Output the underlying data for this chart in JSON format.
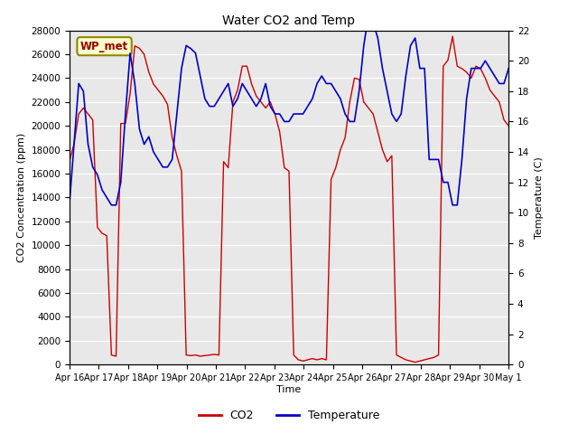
{
  "title": "Water CO2 and Temp",
  "xlabel": "Time",
  "ylabel_left": "CO2 Concentration (ppm)",
  "ylabel_right": "Temperature (C)",
  "co2_ylim": [
    0,
    28000
  ],
  "temp_ylim": [
    0,
    22
  ],
  "co2_yticks": [
    0,
    2000,
    4000,
    6000,
    8000,
    10000,
    12000,
    14000,
    16000,
    18000,
    20000,
    22000,
    24000,
    26000,
    28000
  ],
  "temp_yticks": [
    0,
    2,
    4,
    6,
    8,
    10,
    12,
    14,
    16,
    18,
    20,
    22
  ],
  "co2_color": "#cc0000",
  "temp_color": "#0000cc",
  "legend_label": "WP_met",
  "bg_color": "#e8e8e8",
  "fig_bg": "#ffffff",
  "xtick_labels": [
    "Apr 16",
    "Apr 17",
    "Apr 18",
    "Apr 19",
    "Apr 20",
    "Apr 21",
    "Apr 22",
    "Apr 23",
    "Apr 24",
    "Apr 25",
    "Apr 26",
    "Apr 27",
    "Apr 28",
    "Apr 29",
    "Apr 30",
    "May 1"
  ],
  "co2_data": [
    17000,
    18500,
    21000,
    21500,
    21000,
    20500,
    11500,
    11000,
    10800,
    800,
    700,
    20200,
    20200,
    22700,
    26700,
    26500,
    26000,
    24500,
    23500,
    23000,
    22500,
    21800,
    19000,
    17500,
    16200,
    800,
    750,
    800,
    700,
    750,
    800,
    850,
    800,
    17000,
    16500,
    22000,
    23000,
    25000,
    25000,
    23500,
    22500,
    22000,
    21500,
    22000,
    21000,
    19500,
    16500,
    16200,
    800,
    400,
    300,
    400,
    500,
    400,
    500,
    400,
    15500,
    16500,
    18000,
    19000,
    22000,
    24000,
    23900,
    22000,
    21500,
    21000,
    19500,
    18000,
    17000,
    17500,
    800,
    600,
    400,
    300,
    200,
    300,
    400,
    500,
    600,
    800,
    25000,
    25500,
    27500,
    25000,
    24800,
    24500,
    24000,
    25000,
    24800,
    24000,
    23000,
    22500,
    22000,
    20500,
    20000
  ],
  "temp_data": [
    10.5,
    14.5,
    18.5,
    18.0,
    14.5,
    13.0,
    12.5,
    11.5,
    11.0,
    10.5,
    10.5,
    12.0,
    16.5,
    20.5,
    18.5,
    15.5,
    14.5,
    15.0,
    14.0,
    13.5,
    13.0,
    13.0,
    13.5,
    16.5,
    19.5,
    21.0,
    20.8,
    20.5,
    19.0,
    17.5,
    17.0,
    17.0,
    17.5,
    18.0,
    18.5,
    17.0,
    17.5,
    18.5,
    18.0,
    17.5,
    17.0,
    17.5,
    18.5,
    17.0,
    16.5,
    16.5,
    16.0,
    16.0,
    16.5,
    16.5,
    16.5,
    17.0,
    17.5,
    18.5,
    19.0,
    18.5,
    18.5,
    18.0,
    17.5,
    16.5,
    16.0,
    16.0,
    18.0,
    21.0,
    23.0,
    22.5,
    21.5,
    19.5,
    18.0,
    16.5,
    16.0,
    16.5,
    19.0,
    21.0,
    21.5,
    19.5,
    19.5,
    13.5,
    13.5,
    13.5,
    12.0,
    12.0,
    10.5,
    10.5,
    13.5,
    17.5,
    19.5,
    19.5,
    19.5,
    20.0,
    19.5,
    19.0,
    18.5,
    18.5,
    19.5
  ]
}
